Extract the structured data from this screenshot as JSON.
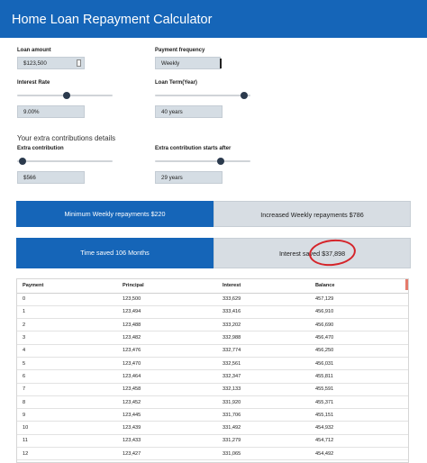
{
  "header": {
    "title": "Home Loan Repayment Calculator"
  },
  "form": {
    "loan_amount_label": "Loan amount",
    "loan_amount_value": "$123,500",
    "payment_frequency_label": "Payment frequency",
    "payment_frequency_value": "Weekly",
    "interest_rate_label": "Interest Rate",
    "interest_rate_value": "9.00%",
    "interest_rate_level": 0.52,
    "loan_term_label": "Loan Term(Year)",
    "loan_term_value": "40 years",
    "loan_term_level": 0.97,
    "extra_section_title": "Your extra contributions details",
    "extra_contribution_label": "Extra contribution",
    "extra_contribution_value": "$566",
    "extra_contribution_level": 0.02,
    "extra_start_label": "Extra contribution starts after",
    "extra_start_value": "29 years",
    "extra_start_level": 0.7
  },
  "summary": {
    "min_repayments": "Minimum Weekly repayments $220",
    "increased_repayments": "Increased Weekly repayments $786",
    "time_saved": "Time saved 106 Months",
    "interest_saved": "Interest saved $37,898"
  },
  "table": {
    "columns": [
      "Payment",
      "Principal",
      "Interest",
      "Balance"
    ],
    "rows": [
      [
        "0",
        "123,500",
        "333,629",
        "457,129"
      ],
      [
        "1",
        "123,494",
        "333,416",
        "456,910"
      ],
      [
        "2",
        "123,488",
        "333,202",
        "456,690"
      ],
      [
        "3",
        "123,482",
        "332,988",
        "456,470"
      ],
      [
        "4",
        "123,476",
        "332,774",
        "456,250"
      ],
      [
        "5",
        "123,470",
        "332,561",
        "456,031"
      ],
      [
        "6",
        "123,464",
        "332,347",
        "455,811"
      ],
      [
        "7",
        "123,458",
        "332,133",
        "455,591"
      ],
      [
        "8",
        "123,452",
        "331,920",
        "455,371"
      ],
      [
        "9",
        "123,445",
        "331,706",
        "455,151"
      ],
      [
        "10",
        "123,439",
        "331,492",
        "454,932"
      ],
      [
        "11",
        "123,433",
        "331,279",
        "454,712"
      ],
      [
        "12",
        "123,427",
        "331,065",
        "454,492"
      ]
    ]
  },
  "colors": {
    "brand_blue": "#1565b8",
    "panel_grey": "#d7dde3",
    "annotation_red": "#d5242a"
  }
}
